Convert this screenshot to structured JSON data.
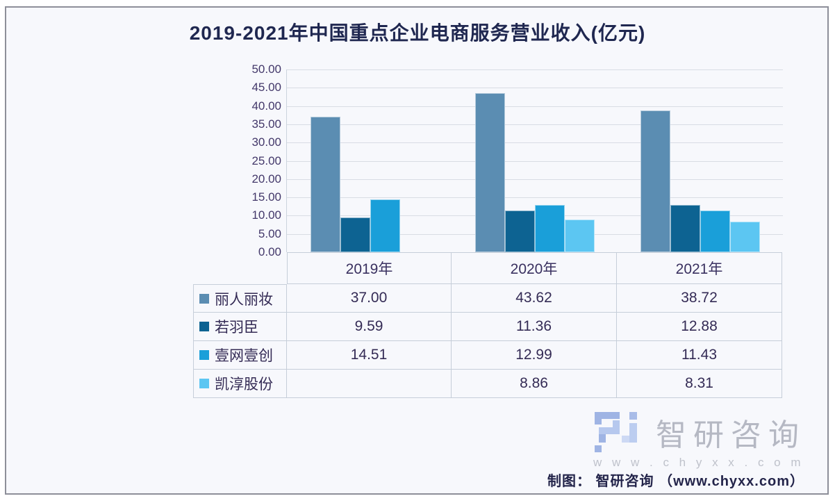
{
  "page": {
    "caption": "制图：  智研咨询  （www.chyxx.com）"
  },
  "watermark": {
    "icon": "zhiyan-2i-logo",
    "brand": "智研咨询",
    "url": "w w w . c h y x x . c o m"
  },
  "chart_data": {
    "type": "bar",
    "title": "2019-2021年中国重点企业电商服务营业收入(亿元)",
    "categories": [
      "2019年",
      "2020年",
      "2021年"
    ],
    "series": [
      {
        "name": "丽人丽妆",
        "color": "#5b8db2",
        "values": [
          37.0,
          43.62,
          38.72
        ]
      },
      {
        "name": "若羽臣",
        "color": "#0d6392",
        "values": [
          9.59,
          11.36,
          12.88
        ]
      },
      {
        "name": "壹网壹创",
        "color": "#1a9fd9",
        "values": [
          14.51,
          12.99,
          11.43
        ]
      },
      {
        "name": "凯淳股份",
        "color": "#5cc6f2",
        "values": [
          null,
          8.86,
          8.31
        ]
      }
    ],
    "ylim": [
      0,
      50
    ],
    "ytick_step": 5,
    "yticks": [
      "50.00",
      "45.00",
      "40.00",
      "35.00",
      "30.00",
      "25.00",
      "20.00",
      "15.00",
      "10.00",
      "5.00",
      "0.00"
    ],
    "grid": true,
    "legend_position": "table-left-column",
    "value_format": "two-decimals"
  }
}
